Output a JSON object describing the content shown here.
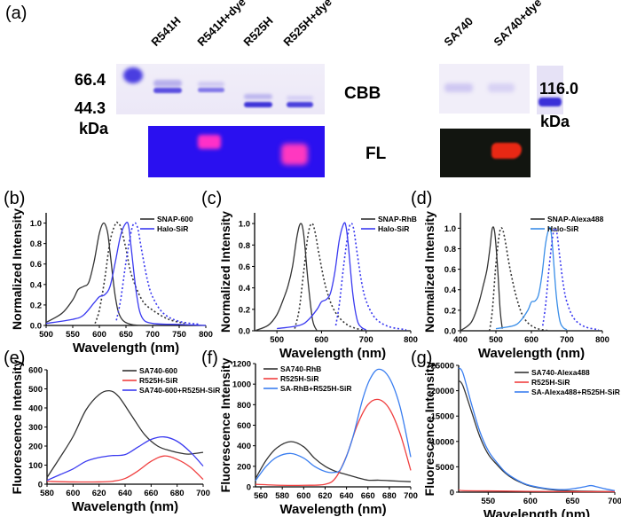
{
  "figure": {
    "panel_a": {
      "label": "(a)",
      "gel1_lanes": [
        "R541H",
        "R541H+dye",
        "R525H",
        "R525H+dye"
      ],
      "gel2_lanes": [
        "SA740",
        "SA740+dye"
      ],
      "markers_left": [
        "66.4",
        "44.3",
        "kDa"
      ],
      "markers_right": [
        "116.0",
        "kDa"
      ],
      "row_labels": [
        "CBB",
        "FL"
      ]
    }
  },
  "chart_data": [
    {
      "id": "b",
      "label": "(b)",
      "type": "line",
      "xlabel": "Wavelength (nm)",
      "ylabel": "Normalized Intensity",
      "xlim": [
        500,
        800
      ],
      "ylim": [
        0,
        1.1
      ],
      "xticks": [
        500,
        550,
        600,
        650,
        700,
        750,
        800
      ],
      "yticks": [
        "0.0",
        "0.2",
        "0.4",
        "0.6",
        "0.8",
        "1.0"
      ],
      "legend": "top-right",
      "series": [
        {
          "name": "SNAP-600",
          "color": "#333333",
          "style": "solid",
          "legend": true,
          "x": [
            500,
            530,
            550,
            560,
            570,
            580,
            590,
            600,
            608,
            615,
            620,
            630,
            640,
            660,
            700
          ],
          "y": [
            0.03,
            0.12,
            0.25,
            0.35,
            0.38,
            0.42,
            0.62,
            0.9,
            1.0,
            0.92,
            0.72,
            0.28,
            0.08,
            0.01,
            0.0
          ]
        },
        {
          "name": "SNAP-600 (em)",
          "color": "#333333",
          "style": "dashed",
          "legend": false,
          "x": [
            592,
            600,
            610,
            620,
            630,
            635,
            640,
            650,
            660,
            680,
            700,
            730,
            760
          ],
          "y": [
            0.02,
            0.15,
            0.45,
            0.82,
            0.99,
            1.0,
            0.96,
            0.75,
            0.5,
            0.25,
            0.15,
            0.06,
            0.02
          ]
        },
        {
          "name": "Halo-SiR",
          "color": "#3a3af0",
          "style": "solid",
          "legend": true,
          "x": [
            500,
            550,
            570,
            590,
            600,
            610,
            620,
            630,
            640,
            650,
            655,
            660,
            670,
            680,
            700,
            750,
            800
          ],
          "y": [
            0.02,
            0.06,
            0.1,
            0.22,
            0.28,
            0.3,
            0.38,
            0.62,
            0.88,
            1.0,
            0.97,
            0.75,
            0.3,
            0.08,
            0.02,
            0.01,
            0.0
          ]
        },
        {
          "name": "Halo-SiR (em)",
          "color": "#3a3af0",
          "style": "dashed",
          "legend": false,
          "x": [
            632,
            640,
            650,
            660,
            666,
            672,
            680,
            690,
            700,
            720,
            750,
            790
          ],
          "y": [
            0.05,
            0.25,
            0.62,
            0.92,
            1.0,
            0.95,
            0.72,
            0.45,
            0.28,
            0.12,
            0.04,
            0.01
          ]
        }
      ]
    },
    {
      "id": "c",
      "label": "(c)",
      "type": "line",
      "xlabel": "Wavelength (nm)",
      "ylabel": "Normalized Intensity",
      "xlim": [
        450,
        800
      ],
      "ylim": [
        0,
        1.1
      ],
      "xticks": [
        500,
        600,
        700,
        800
      ],
      "yticks": [
        "0.0",
        "0.2",
        "0.4",
        "0.6",
        "0.8",
        "1.0"
      ],
      "legend": "top-right",
      "series": [
        {
          "name": "SNAP-RhB",
          "color": "#333333",
          "style": "solid",
          "legend": true,
          "x": [
            450,
            480,
            500,
            515,
            525,
            535,
            545,
            553,
            560,
            570,
            580,
            590
          ],
          "y": [
            0.0,
            0.05,
            0.15,
            0.3,
            0.42,
            0.6,
            0.88,
            1.0,
            0.9,
            0.45,
            0.1,
            0.0
          ]
        },
        {
          "name": "SNAP-RhB (em)",
          "color": "#333333",
          "style": "dashed",
          "legend": false,
          "x": [
            540,
            550,
            560,
            570,
            578,
            585,
            595,
            610,
            630,
            660,
            700
          ],
          "y": [
            0.02,
            0.2,
            0.55,
            0.9,
            1.0,
            0.93,
            0.7,
            0.4,
            0.18,
            0.05,
            0.0
          ]
        },
        {
          "name": "Halo-SiR",
          "color": "#3a3af0",
          "style": "solid",
          "legend": true,
          "x": [
            500,
            550,
            570,
            590,
            600,
            610,
            620,
            630,
            640,
            650,
            655,
            660,
            670,
            680,
            690,
            700
          ],
          "y": [
            0.02,
            0.05,
            0.1,
            0.2,
            0.27,
            0.29,
            0.35,
            0.55,
            0.85,
            1.0,
            0.97,
            0.8,
            0.35,
            0.1,
            0.03,
            0.01
          ]
        },
        {
          "name": "Halo-SiR (em)",
          "color": "#3a3af0",
          "style": "dashed",
          "legend": false,
          "x": [
            632,
            640,
            650,
            660,
            666,
            672,
            680,
            690,
            700,
            720,
            750,
            790
          ],
          "y": [
            0.05,
            0.25,
            0.62,
            0.92,
            1.0,
            0.95,
            0.72,
            0.45,
            0.28,
            0.12,
            0.04,
            0.01
          ]
        }
      ]
    },
    {
      "id": "d",
      "label": "(d)",
      "type": "line",
      "xlabel": "Wavelength (nm)",
      "ylabel": "Normalized Intensity",
      "xlim": [
        400,
        800
      ],
      "ylim": [
        0,
        1.15
      ],
      "xticks": [
        400,
        500,
        600,
        700,
        800
      ],
      "yticks": [
        "0.0",
        "0.2",
        "0.4",
        "0.6",
        "0.8",
        "1.0"
      ],
      "legend": "top-right",
      "series": [
        {
          "name": "SNAP-Alexa488",
          "color": "#333333",
          "style": "solid",
          "legend": true,
          "x": [
            400,
            430,
            450,
            465,
            475,
            483,
            490,
            497,
            505,
            512,
            518
          ],
          "y": [
            0.0,
            0.08,
            0.25,
            0.45,
            0.6,
            0.8,
            1.0,
            0.95,
            0.6,
            0.2,
            0.02
          ]
        },
        {
          "name": "SNAP-Alexa488 (em)",
          "color": "#333333",
          "style": "dashed",
          "legend": false,
          "x": [
            482,
            490,
            500,
            510,
            517,
            525,
            540,
            560,
            580,
            610,
            650
          ],
          "y": [
            0.0,
            0.2,
            0.65,
            0.95,
            1.0,
            0.9,
            0.6,
            0.3,
            0.12,
            0.03,
            0.0
          ]
        },
        {
          "name": "Halo-SiR",
          "color": "#3a8ee8",
          "style": "solid",
          "legend": true,
          "x": [
            500,
            550,
            570,
            590,
            600,
            610,
            620,
            630,
            640,
            650,
            655,
            660,
            670,
            680,
            690,
            700
          ],
          "y": [
            0.02,
            0.05,
            0.1,
            0.2,
            0.28,
            0.29,
            0.35,
            0.55,
            0.85,
            1.0,
            0.97,
            0.8,
            0.35,
            0.1,
            0.03,
            0.01
          ]
        },
        {
          "name": "Halo-SiR (em)",
          "color": "#3a3af0",
          "style": "dashed",
          "legend": false,
          "x": [
            632,
            640,
            650,
            660,
            666,
            672,
            680,
            690,
            700,
            720,
            750,
            790
          ],
          "y": [
            0.05,
            0.25,
            0.62,
            0.92,
            1.0,
            0.95,
            0.72,
            0.45,
            0.28,
            0.12,
            0.04,
            0.01
          ]
        }
      ]
    },
    {
      "id": "e",
      "label": "(e)",
      "type": "line",
      "xlabel": "Wavelength (nm)",
      "ylabel": "Fluorescence Intensity",
      "xlim": [
        580,
        700
      ],
      "ylim": [
        0,
        600
      ],
      "xticks": [
        580,
        600,
        620,
        640,
        660,
        680,
        700
      ],
      "yticks": [
        "0",
        "100",
        "200",
        "300",
        "400",
        "500",
        "600"
      ],
      "legend": "top-right",
      "series": [
        {
          "name": "SA740-600",
          "color": "#333333",
          "style": "solid",
          "legend": true,
          "x": [
            580,
            590,
            600,
            610,
            620,
            628,
            635,
            645,
            655,
            665,
            675,
            685,
            690,
            700
          ],
          "y": [
            35,
            140,
            250,
            390,
            470,
            490,
            460,
            360,
            260,
            200,
            175,
            160,
            158,
            167
          ]
        },
        {
          "name": "R525H-SiR",
          "color": "#f04040",
          "style": "solid",
          "legend": true,
          "x": [
            580,
            600,
            620,
            630,
            640,
            650,
            660,
            670,
            680,
            690,
            700
          ],
          "y": [
            15,
            12,
            12,
            15,
            30,
            70,
            120,
            148,
            130,
            90,
            25
          ]
        },
        {
          "name": "SA740-600+R525H-SiR",
          "color": "#3a3af0",
          "style": "solid",
          "legend": true,
          "x": [
            580,
            590,
            600,
            610,
            620,
            630,
            640,
            650,
            660,
            670,
            680,
            690,
            700
          ],
          "y": [
            20,
            50,
            80,
            120,
            140,
            150,
            155,
            195,
            235,
            248,
            225,
            170,
            95
          ]
        }
      ]
    },
    {
      "id": "f",
      "label": "(f)",
      "type": "line",
      "xlabel": "Wavelength (nm)",
      "ylabel": "Fluorescence Intensity",
      "xlim": [
        555,
        700
      ],
      "ylim": [
        0,
        1200
      ],
      "xticks": [
        560,
        580,
        600,
        620,
        640,
        660,
        680,
        700
      ],
      "yticks": [
        "0",
        "200",
        "400",
        "600",
        "800",
        "1000",
        "1200"
      ],
      "legend": "top-left",
      "series": [
        {
          "name": "SA740-RhB",
          "color": "#333333",
          "style": "solid",
          "legend": true,
          "x": [
            555,
            565,
            575,
            588,
            600,
            610,
            620,
            630,
            640,
            650,
            660,
            670,
            680,
            700
          ],
          "y": [
            80,
            260,
            380,
            440,
            390,
            280,
            200,
            150,
            120,
            90,
            65,
            65,
            60,
            50
          ]
        },
        {
          "name": "R525H-SiR",
          "color": "#f04040",
          "style": "solid",
          "legend": true,
          "x": [
            555,
            580,
            600,
            620,
            630,
            640,
            650,
            660,
            670,
            680,
            690,
            700
          ],
          "y": [
            25,
            15,
            15,
            25,
            90,
            300,
            600,
            800,
            850,
            760,
            520,
            160
          ]
        },
        {
          "name": "SA-RhB+R525H-SiR",
          "color": "#3a7ef0",
          "style": "solid",
          "legend": true,
          "x": [
            555,
            565,
            575,
            588,
            600,
            610,
            620,
            628,
            635,
            645,
            655,
            662,
            670,
            680,
            690,
            700
          ],
          "y": [
            60,
            200,
            290,
            325,
            280,
            200,
            150,
            140,
            180,
            450,
            850,
            1050,
            1145,
            1060,
            780,
            290
          ]
        }
      ]
    },
    {
      "id": "g",
      "label": "(g)",
      "type": "line",
      "xlabel": "Wavelength (nm)",
      "ylabel": "Fluorescence Intensity",
      "xlim": [
        515,
        700
      ],
      "ylim": [
        0,
        25000
      ],
      "xticks": [
        550,
        600,
        650,
        700
      ],
      "yticks": [
        "0",
        "5000",
        "10000",
        "15000",
        "20000",
        "25000"
      ],
      "legend": "top-right",
      "series": [
        {
          "name": "SA740-Alexa488",
          "color": "#333333",
          "style": "solid",
          "legend": true,
          "x": [
            515,
            520,
            530,
            540,
            550,
            560,
            570,
            580,
            590,
            600,
            620,
            640,
            660,
            680,
            700
          ],
          "y": [
            22000,
            21000,
            16000,
            11000,
            7500,
            5500,
            3800,
            2600,
            1800,
            1200,
            600,
            300,
            200,
            150,
            100
          ]
        },
        {
          "name": "R525H-SiR",
          "color": "#f04040",
          "style": "solid",
          "legend": true,
          "x": [
            515,
            520,
            550,
            600,
            650,
            700
          ],
          "y": [
            500,
            300,
            250,
            150,
            100,
            100
          ]
        },
        {
          "name": "SA-Alexa488+R525H-SiR",
          "color": "#3a7ef0",
          "style": "solid",
          "legend": true,
          "x": [
            515,
            520,
            530,
            540,
            550,
            560,
            570,
            580,
            590,
            600,
            620,
            640,
            655,
            665,
            672,
            680,
            690,
            700
          ],
          "y": [
            24500,
            23500,
            17500,
            12000,
            8200,
            5900,
            4000,
            2800,
            1900,
            1300,
            700,
            500,
            800,
            1100,
            1300,
            1000,
            600,
            300
          ]
        }
      ]
    }
  ]
}
